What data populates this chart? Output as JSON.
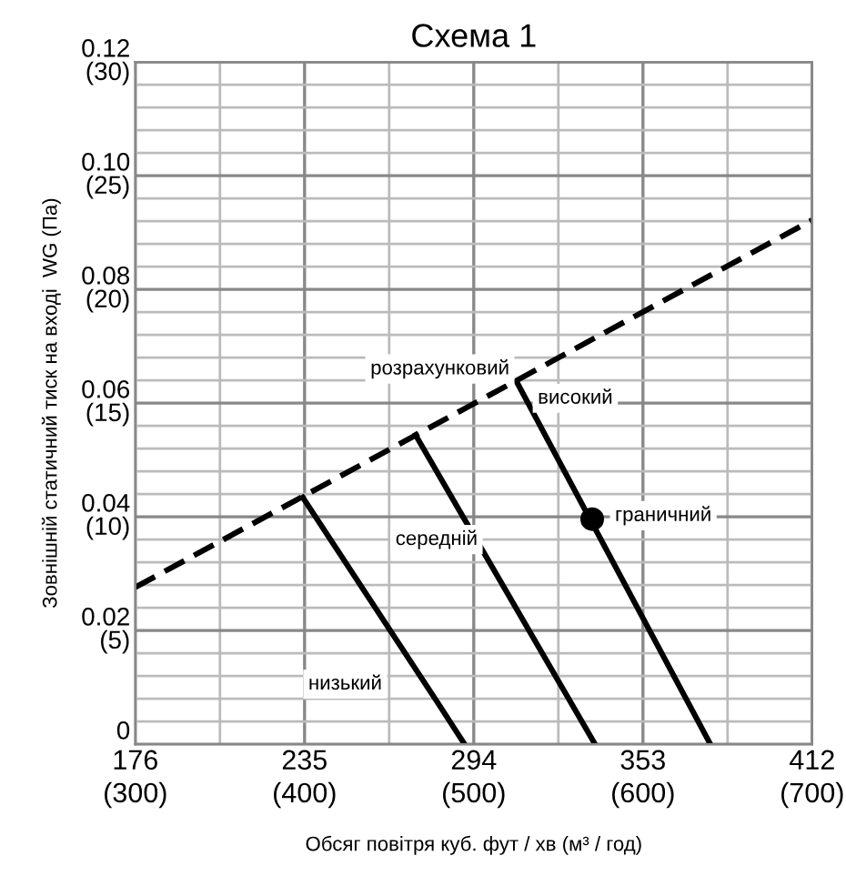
{
  "chart_data": {
    "type": "line",
    "title": "Схема 1",
    "xlabel": "Обсяг повітря куб. фут / хв (м³ / год)",
    "ylabel": "Зовнішній статичний тиск на вході  WG (Па)",
    "xlim": [
      176,
      412
    ],
    "ylim": [
      0,
      0.12
    ],
    "xticks": [
      176,
      235,
      294,
      353,
      412
    ],
    "yticks": [
      0,
      0.02,
      0.04,
      0.06,
      0.08,
      {
        "value": 0.1,
        "label": "0.10"
      },
      0.12
    ],
    "x2lim": [
      300,
      700
    ],
    "x2ticks": [
      {
        "value": 300,
        "label": "(300)"
      },
      {
        "value": 400,
        "label": "(400)"
      },
      {
        "value": 500,
        "label": "(500)"
      },
      {
        "value": 600,
        "label": "(600)"
      },
      {
        "value": 700,
        "label": "(700)"
      }
    ],
    "y2lim": [
      0,
      30
    ],
    "y2ticks": [
      {
        "value": 5,
        "label": "(5)"
      },
      {
        "value": 10,
        "label": "(10)"
      },
      {
        "value": 15,
        "label": "(15)"
      },
      {
        "value": 20,
        "label": "(20)"
      },
      {
        "value": 25,
        "label": "(25)"
      },
      {
        "value": 30,
        "label": "(30)"
      }
    ],
    "grid": true,
    "marker": "none",
    "series": [
      {
        "name": "розрахунковий",
        "color": "#000000",
        "line_style": "dashed",
        "x": [
          176,
          412
        ],
        "values": [
          0.0276,
          0.0922
        ]
      },
      {
        "name": "низький",
        "color": "#000000",
        "line_style": "solid",
        "x": [
          234.4,
          281.3,
          290.8
        ],
        "values": [
          0.0434,
          0.0074,
          0
        ]
      },
      {
        "name": "середній",
        "color": "#000000",
        "line_style": "solid",
        "x": [
          273.7,
          336.3
        ],
        "values": [
          0.0544,
          0
        ]
      },
      {
        "name": "високий",
        "color": "#000000",
        "line_style": "solid",
        "x": [
          308.8,
          376.5
        ],
        "values": [
          0.0639,
          0
        ]
      },
      {
        "name": "граничний",
        "type": "scatter",
        "marker": "circle",
        "color": "#000000",
        "x": [
          335.3
        ],
        "values": [
          0.0396
        ]
      }
    ]
  }
}
